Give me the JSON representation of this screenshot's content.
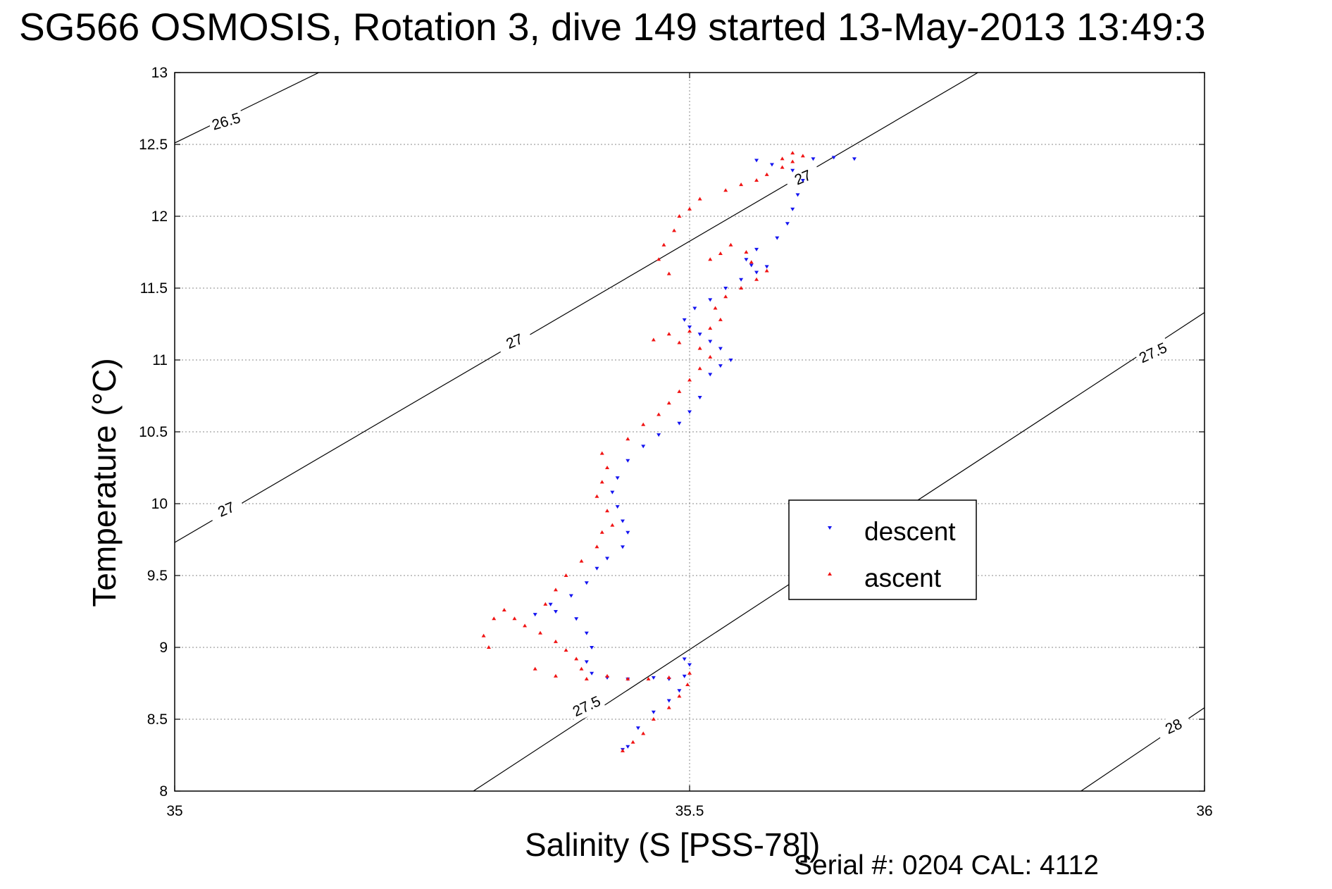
{
  "colors": {
    "descent": "#1414f0",
    "ascent": "#f01414",
    "axes": "#000000",
    "grid": "#888888"
  },
  "chart_data": {
    "type": "scatter",
    "title": "SG566 OSMOSIS, Rotation 3, dive 149 started 13-May-2013 13:49:3",
    "xlabel": "Salinity (S [PSS-78])",
    "ylabel": "Temperature (°C)",
    "footer": "Serial #: 0204  CAL: 4112",
    "xlim": [
      35,
      36
    ],
    "ylim": [
      8,
      13
    ],
    "xticks": [
      35,
      35.5,
      36
    ],
    "xtick_labels": [
      "35",
      "35.5",
      "36"
    ],
    "yticks": [
      8,
      8.5,
      9,
      9.5,
      10,
      10.5,
      11,
      11.5,
      12,
      12.5,
      13
    ],
    "ytick_labels": [
      "8",
      "8.5",
      "9",
      "9.5",
      "10",
      "10.5",
      "11",
      "11.5",
      "12",
      "12.5",
      "13"
    ],
    "grid": true,
    "legend_position": "right-center",
    "density_contours": [
      {
        "value": "26.5",
        "points": [
          [
            35,
            12.51
          ],
          [
            35.14,
            13.0
          ]
        ],
        "labels": [
          [
            35.05,
            12.66,
            16
          ]
        ]
      },
      {
        "value": "27",
        "points": [
          [
            35,
            9.73
          ],
          [
            35.78,
            13.0
          ]
        ],
        "labels": [
          [
            35.05,
            9.96,
            23
          ],
          [
            35.33,
            11.13,
            23
          ],
          [
            35.61,
            12.27,
            23
          ]
        ]
      },
      {
        "value": "27.5",
        "points": [
          [
            35.29,
            8.0
          ],
          [
            36,
            11.33
          ]
        ],
        "labels": [
          [
            35.4,
            8.59,
            25
          ],
          [
            35.95,
            11.05,
            25
          ]
        ]
      },
      {
        "value": "28",
        "points": [
          [
            35.88,
            8.0
          ],
          [
            36,
            8.58
          ]
        ],
        "labels": [
          [
            35.97,
            8.45,
            25
          ]
        ]
      }
    ],
    "series": [
      {
        "name": "descent",
        "marker": "triangle-down",
        "color": "#1414f0",
        "points": [
          [
            35.435,
            8.29
          ],
          [
            35.44,
            8.31
          ],
          [
            35.45,
            8.44
          ],
          [
            35.465,
            8.55
          ],
          [
            35.48,
            8.63
          ],
          [
            35.49,
            8.7
          ],
          [
            35.495,
            8.8
          ],
          [
            35.5,
            8.88
          ],
          [
            35.495,
            8.92
          ],
          [
            35.48,
            8.78
          ],
          [
            35.465,
            8.79
          ],
          [
            35.44,
            8.78
          ],
          [
            35.42,
            8.79
          ],
          [
            35.405,
            8.82
          ],
          [
            35.4,
            8.9
          ],
          [
            35.405,
            9.0
          ],
          [
            35.4,
            9.1
          ],
          [
            35.39,
            9.2
          ],
          [
            35.37,
            9.25
          ],
          [
            35.35,
            9.23
          ],
          [
            35.365,
            9.3
          ],
          [
            35.385,
            9.36
          ],
          [
            35.4,
            9.45
          ],
          [
            35.41,
            9.55
          ],
          [
            35.42,
            9.62
          ],
          [
            35.435,
            9.7
          ],
          [
            35.44,
            9.8
          ],
          [
            35.435,
            9.88
          ],
          [
            35.43,
            9.98
          ],
          [
            35.425,
            10.08
          ],
          [
            35.43,
            10.18
          ],
          [
            35.44,
            10.3
          ],
          [
            35.455,
            10.4
          ],
          [
            35.47,
            10.48
          ],
          [
            35.49,
            10.56
          ],
          [
            35.5,
            10.64
          ],
          [
            35.51,
            10.74
          ],
          [
            35.52,
            10.9
          ],
          [
            35.53,
            10.96
          ],
          [
            35.54,
            11.0
          ],
          [
            35.53,
            11.08
          ],
          [
            35.52,
            11.13
          ],
          [
            35.51,
            11.18
          ],
          [
            35.5,
            11.23
          ],
          [
            35.495,
            11.28
          ],
          [
            35.505,
            11.36
          ],
          [
            35.52,
            11.42
          ],
          [
            35.535,
            11.5
          ],
          [
            35.55,
            11.56
          ],
          [
            35.565,
            11.61
          ],
          [
            35.575,
            11.65
          ],
          [
            35.56,
            11.66
          ],
          [
            35.555,
            11.7
          ],
          [
            35.565,
            11.77
          ],
          [
            35.585,
            11.85
          ],
          [
            35.595,
            11.95
          ],
          [
            35.6,
            12.05
          ],
          [
            35.605,
            12.15
          ],
          [
            35.61,
            12.25
          ],
          [
            35.6,
            12.32
          ],
          [
            35.58,
            12.36
          ],
          [
            35.565,
            12.39
          ],
          [
            35.62,
            12.4
          ],
          [
            35.64,
            12.41
          ],
          [
            35.66,
            12.4
          ]
        ]
      },
      {
        "name": "ascent",
        "marker": "triangle-up",
        "color": "#f01414",
        "points": [
          [
            35.435,
            8.28
          ],
          [
            35.445,
            8.34
          ],
          [
            35.455,
            8.4
          ],
          [
            35.465,
            8.5
          ],
          [
            35.48,
            8.58
          ],
          [
            35.49,
            8.66
          ],
          [
            35.498,
            8.74
          ],
          [
            35.5,
            8.82
          ],
          [
            35.48,
            8.79
          ],
          [
            35.46,
            8.78
          ],
          [
            35.44,
            8.78
          ],
          [
            35.42,
            8.8
          ],
          [
            35.4,
            8.78
          ],
          [
            35.395,
            8.85
          ],
          [
            35.39,
            8.92
          ],
          [
            35.38,
            8.98
          ],
          [
            35.37,
            9.04
          ],
          [
            35.355,
            9.1
          ],
          [
            35.34,
            9.15
          ],
          [
            35.33,
            9.2
          ],
          [
            35.32,
            9.26
          ],
          [
            35.31,
            9.2
          ],
          [
            35.3,
            9.08
          ],
          [
            35.305,
            9.0
          ],
          [
            35.35,
            8.85
          ],
          [
            35.37,
            8.8
          ],
          [
            35.36,
            9.3
          ],
          [
            35.37,
            9.4
          ],
          [
            35.38,
            9.5
          ],
          [
            35.395,
            9.6
          ],
          [
            35.41,
            9.7
          ],
          [
            35.415,
            9.8
          ],
          [
            35.425,
            9.85
          ],
          [
            35.42,
            9.95
          ],
          [
            35.41,
            10.05
          ],
          [
            35.415,
            10.15
          ],
          [
            35.42,
            10.25
          ],
          [
            35.415,
            10.35
          ],
          [
            35.44,
            10.45
          ],
          [
            35.455,
            10.55
          ],
          [
            35.47,
            10.62
          ],
          [
            35.48,
            10.7
          ],
          [
            35.49,
            10.78
          ],
          [
            35.5,
            10.86
          ],
          [
            35.51,
            10.94
          ],
          [
            35.52,
            11.02
          ],
          [
            35.51,
            11.08
          ],
          [
            35.49,
            11.12
          ],
          [
            35.465,
            11.14
          ],
          [
            35.48,
            11.18
          ],
          [
            35.5,
            11.2
          ],
          [
            35.52,
            11.22
          ],
          [
            35.53,
            11.28
          ],
          [
            35.525,
            11.36
          ],
          [
            35.535,
            11.44
          ],
          [
            35.55,
            11.5
          ],
          [
            35.565,
            11.56
          ],
          [
            35.575,
            11.62
          ],
          [
            35.56,
            11.68
          ],
          [
            35.555,
            11.75
          ],
          [
            35.54,
            11.8
          ],
          [
            35.53,
            11.74
          ],
          [
            35.52,
            11.7
          ],
          [
            35.48,
            11.6
          ],
          [
            35.47,
            11.7
          ],
          [
            35.475,
            11.8
          ],
          [
            35.485,
            11.9
          ],
          [
            35.49,
            12.0
          ],
          [
            35.5,
            12.05
          ],
          [
            35.51,
            12.12
          ],
          [
            35.535,
            12.18
          ],
          [
            35.55,
            12.22
          ],
          [
            35.565,
            12.25
          ],
          [
            35.575,
            12.29
          ],
          [
            35.59,
            12.34
          ],
          [
            35.6,
            12.38
          ],
          [
            35.61,
            12.42
          ],
          [
            35.6,
            12.44
          ],
          [
            35.59,
            12.4
          ]
        ]
      }
    ]
  }
}
